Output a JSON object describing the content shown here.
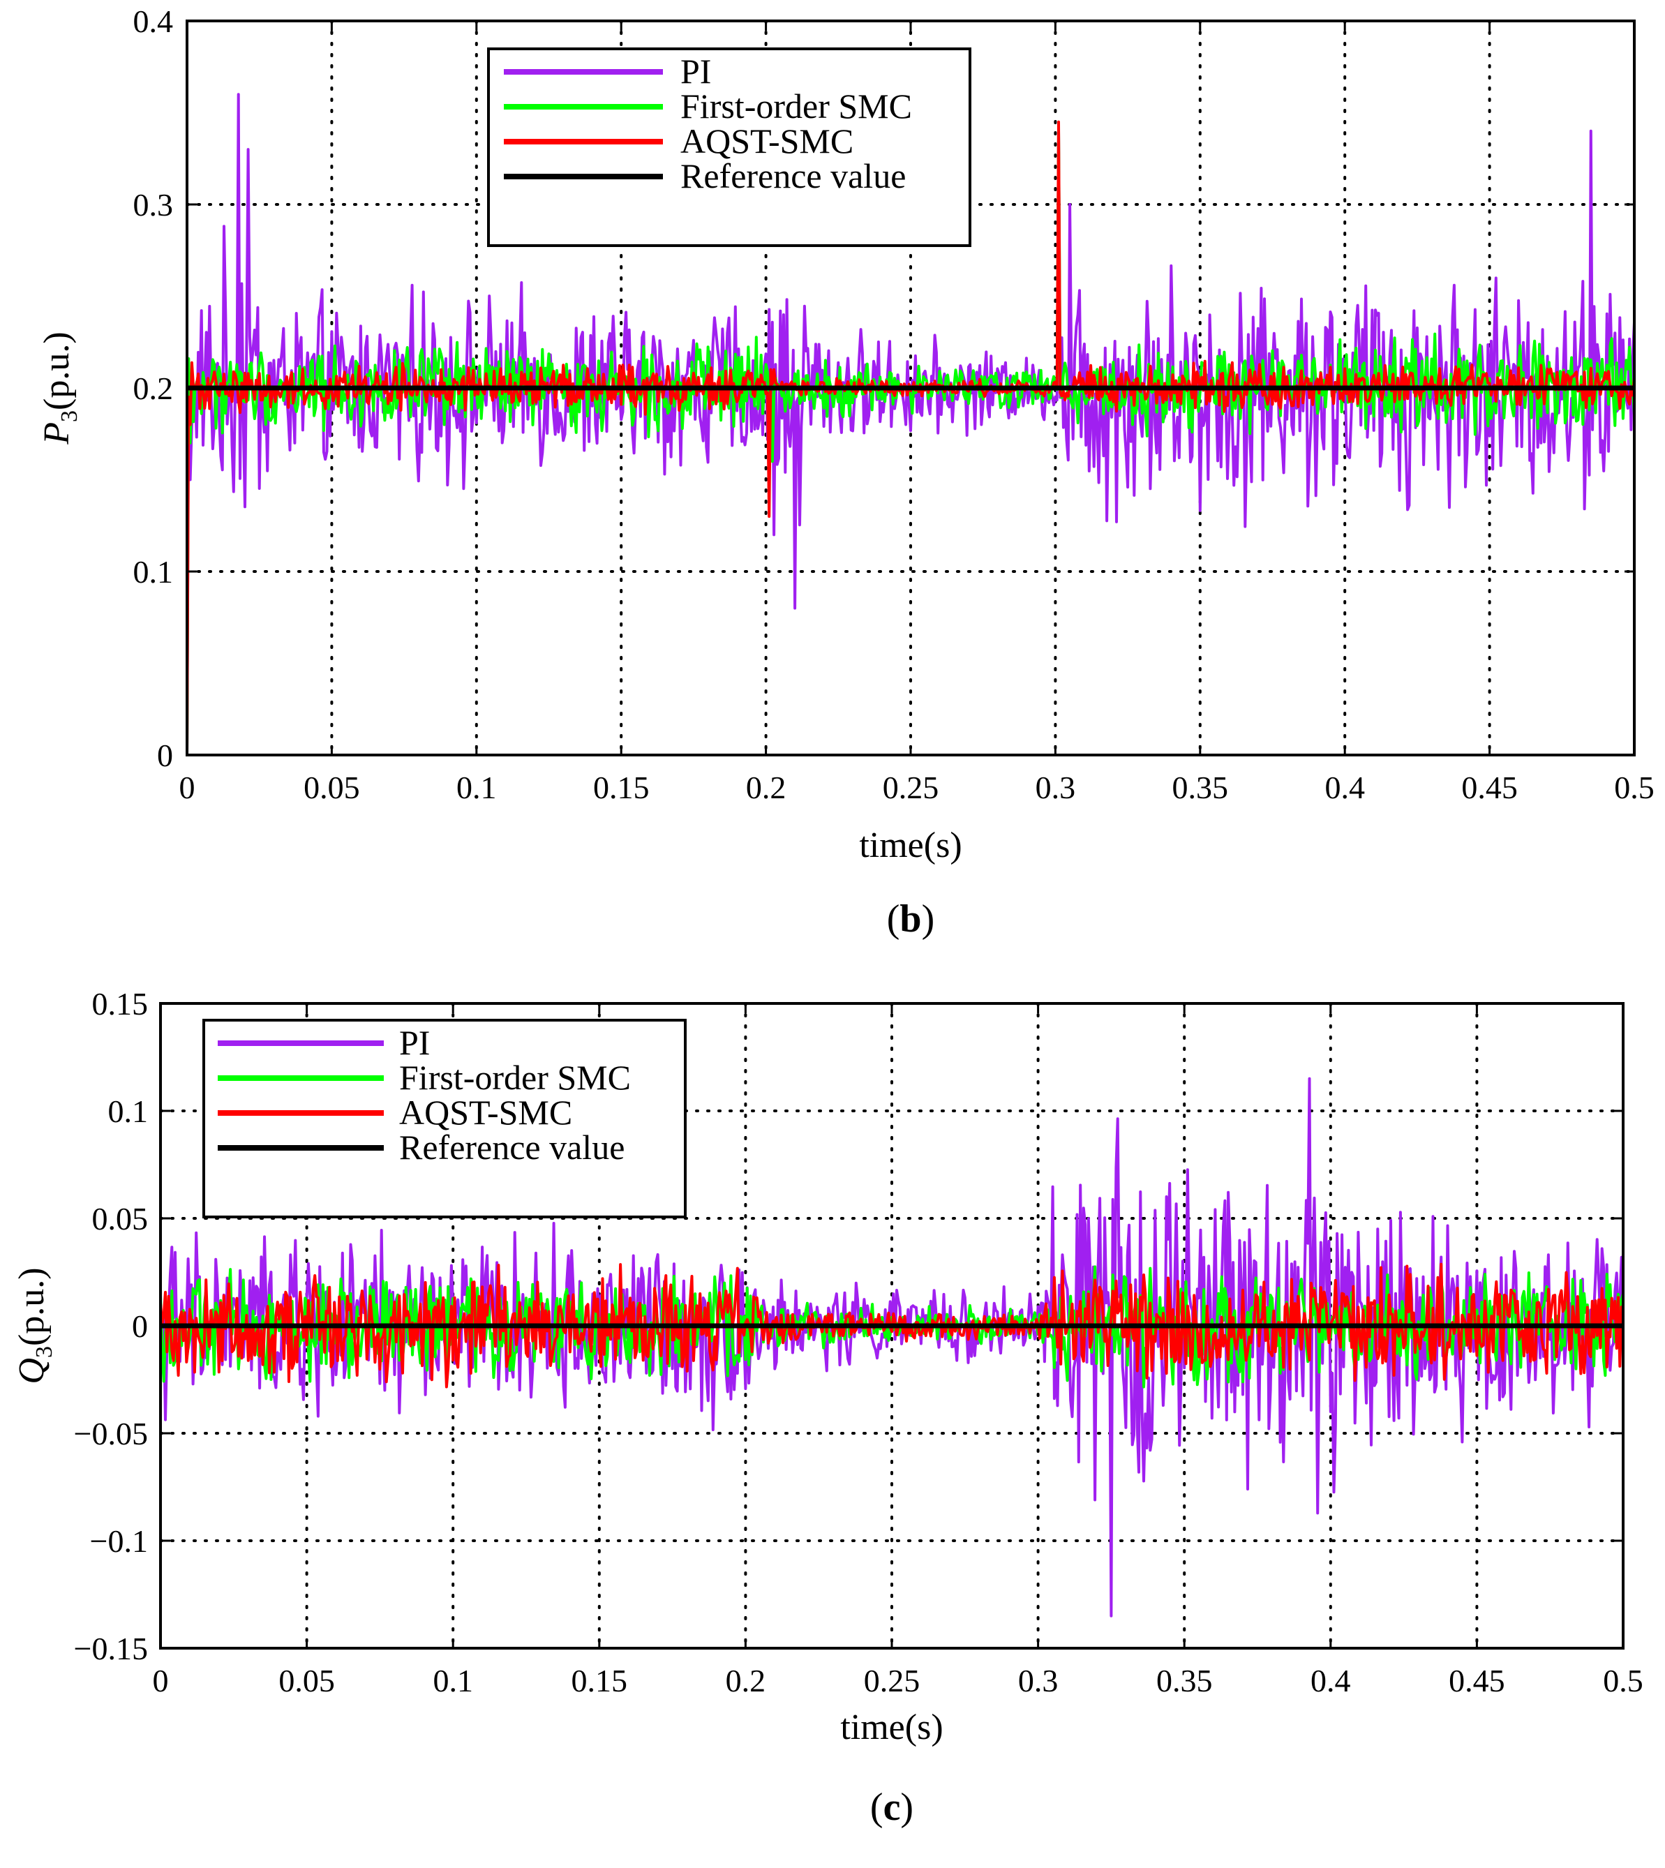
{
  "chart_data": [
    {
      "id": "b",
      "type": "line",
      "caption_letter": "b",
      "xlabel": "time(s)",
      "ylabel_symbol": "P",
      "ylabel_sub": "3",
      "ylabel_unit": "(p.u.)",
      "xlim": [
        0,
        0.5
      ],
      "ylim": [
        0,
        0.4
      ],
      "xticks": [
        0,
        0.05,
        0.1,
        0.15,
        0.2,
        0.25,
        0.3,
        0.35,
        0.4,
        0.45,
        0.5
      ],
      "xtick_labels": [
        "0",
        "0.05",
        "0.1",
        "0.15",
        "0.2",
        "0.25",
        "0.3",
        "0.35",
        "0.4",
        "0.45",
        "0.5"
      ],
      "yticks": [
        0,
        0.1,
        0.2,
        0.3,
        0.4
      ],
      "ytick_labels": [
        "0",
        "0.1",
        "0.2",
        "0.3",
        "0.4"
      ],
      "grid": true,
      "legend_position": "top-center",
      "series": [
        {
          "name": "PI",
          "color": "#a020f0",
          "base": 0.2,
          "envelope": [
            [
              0,
              0.03
            ],
            [
              0.005,
              0.06
            ],
            [
              0.02,
              0.12
            ],
            [
              0.03,
              0.06
            ],
            [
              0.2,
              0.055
            ],
            [
              0.205,
              0.07
            ],
            [
              0.21,
              0.11
            ],
            [
              0.22,
              0.04
            ],
            [
              0.3,
              0.02
            ],
            [
              0.305,
              0.09
            ],
            [
              0.35,
              0.08
            ],
            [
              0.5,
              0.075
            ]
          ],
          "events": [
            [
              0.0,
              0.0
            ],
            [
              0.001,
              0.15
            ],
            [
              0.003,
              0.2
            ],
            [
              0.018,
              0.36
            ],
            [
              0.021,
              0.33
            ],
            [
              0.203,
              0.12
            ],
            [
              0.21,
              0.08
            ],
            [
              0.301,
              0.34
            ],
            [
              0.305,
              0.3
            ],
            [
              0.485,
              0.34
            ]
          ]
        },
        {
          "name": "First-order SMC",
          "color": "#00ff00",
          "base": 0.2,
          "envelope": [
            [
              0,
              0.028
            ],
            [
              0.2,
              0.028
            ],
            [
              0.205,
              0.018
            ],
            [
              0.3,
              0.014
            ],
            [
              0.305,
              0.03
            ],
            [
              0.5,
              0.03
            ]
          ],
          "events": [
            [
              0.0,
              0.0
            ],
            [
              0.001,
              0.17
            ],
            [
              0.003,
              0.2
            ],
            [
              0.202,
              0.16
            ],
            [
              0.301,
              0.34
            ]
          ]
        },
        {
          "name": "AQST-SMC",
          "color": "#ff0000",
          "base": 0.2,
          "envelope": [
            [
              0,
              0.015
            ],
            [
              0.2,
              0.015
            ],
            [
              0.205,
              0.006
            ],
            [
              0.3,
              0.005
            ],
            [
              0.305,
              0.015
            ],
            [
              0.5,
              0.015
            ]
          ],
          "events": [
            [
              0.0,
              0.0
            ],
            [
              0.001,
              0.18
            ],
            [
              0.003,
              0.2
            ],
            [
              0.201,
              0.13
            ],
            [
              0.203,
              0.21
            ],
            [
              0.301,
              0.345
            ]
          ]
        },
        {
          "name": "Reference value",
          "color": "#000000",
          "base": 0.2,
          "envelope": [
            [
              0,
              0
            ],
            [
              0.5,
              0
            ]
          ],
          "events": []
        }
      ]
    },
    {
      "id": "c",
      "type": "line",
      "caption_letter": "c",
      "xlabel": "time(s)",
      "ylabel_symbol": "Q",
      "ylabel_sub": "3",
      "ylabel_unit": "(p.u.)",
      "xlim": [
        0,
        0.5
      ],
      "ylim": [
        -0.15,
        0.15
      ],
      "xticks": [
        0,
        0.05,
        0.1,
        0.15,
        0.2,
        0.25,
        0.3,
        0.35,
        0.4,
        0.45,
        0.5
      ],
      "xtick_labels": [
        "0",
        "0.05",
        "0.1",
        "0.15",
        "0.2",
        "0.25",
        "0.3",
        "0.35",
        "0.4",
        "0.45",
        "0.5"
      ],
      "yticks": [
        -0.15,
        -0.1,
        -0.05,
        0,
        0.05,
        0.1,
        0.15
      ],
      "ytick_labels": [
        "−0.15",
        "−0.1",
        "−0.05",
        "0",
        "0.05",
        "0.1",
        "0.15"
      ],
      "grid": true,
      "legend_position": "top-left",
      "series": [
        {
          "name": "PI",
          "color": "#a020f0",
          "base": 0.0,
          "envelope": [
            [
              0,
              0.05
            ],
            [
              0.2,
              0.05
            ],
            [
              0.21,
              0.025
            ],
            [
              0.3,
              0.02
            ],
            [
              0.305,
              0.08
            ],
            [
              0.33,
              0.11
            ],
            [
              0.37,
              0.08
            ],
            [
              0.4,
              0.1
            ],
            [
              0.44,
              0.06
            ],
            [
              0.5,
              0.055
            ]
          ],
          "events": [
            [
              0.21,
              -0.02
            ],
            [
              0.325,
              -0.135
            ],
            [
              0.393,
              0.115
            ]
          ]
        },
        {
          "name": "First-order SMC",
          "color": "#00ff00",
          "base": 0.0,
          "envelope": [
            [
              0,
              0.03
            ],
            [
              0.2,
              0.03
            ],
            [
              0.21,
              0.012
            ],
            [
              0.3,
              0.01
            ],
            [
              0.305,
              0.03
            ],
            [
              0.5,
              0.03
            ]
          ],
          "events": []
        },
        {
          "name": "AQST-SMC",
          "color": "#ff0000",
          "base": 0.0,
          "envelope": [
            [
              0,
              0.03
            ],
            [
              0.2,
              0.03
            ],
            [
              0.21,
              0.01
            ],
            [
              0.3,
              0.008
            ],
            [
              0.305,
              0.03
            ],
            [
              0.5,
              0.03
            ]
          ],
          "events": []
        },
        {
          "name": "Reference value",
          "color": "#000000",
          "base": 0.0,
          "envelope": [
            [
              0,
              0
            ],
            [
              0.5,
              0
            ]
          ],
          "events": []
        }
      ]
    }
  ]
}
